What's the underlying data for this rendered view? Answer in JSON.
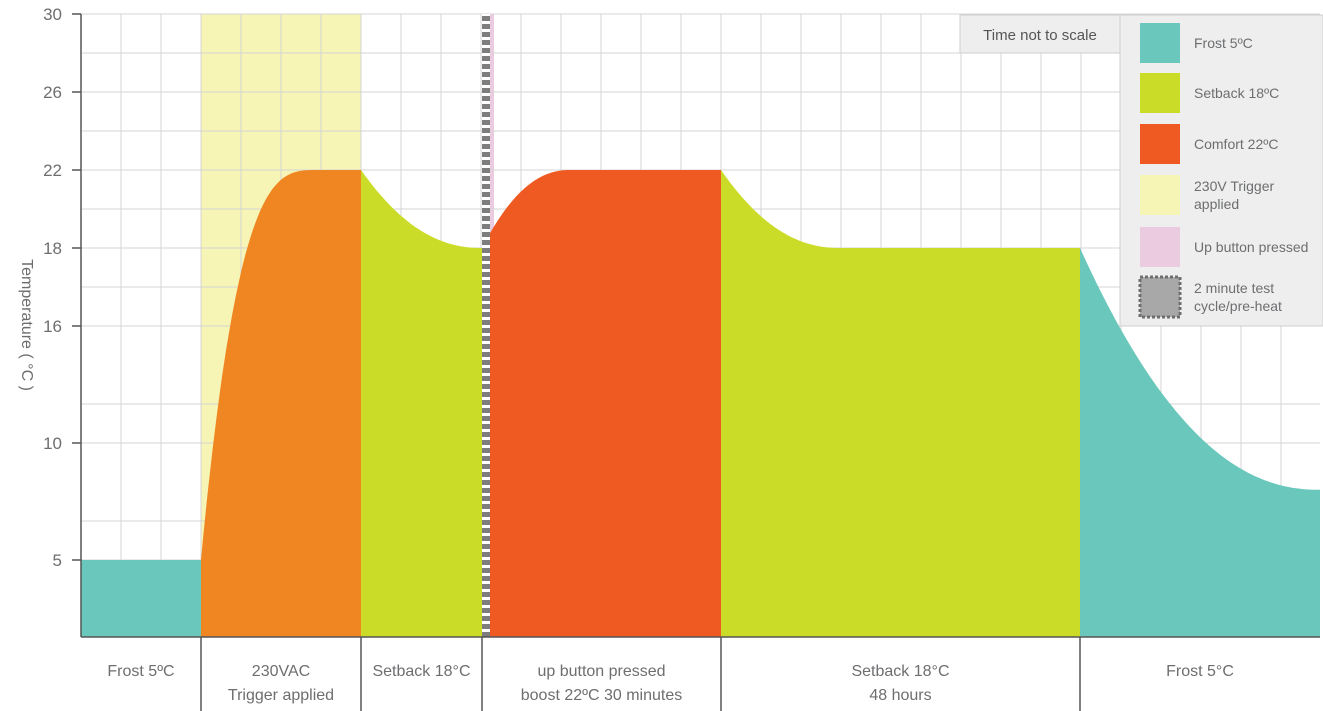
{
  "chart_data": {
    "type": "area",
    "ylabel": "Temperature ( °C )",
    "y_ticks": [
      "5",
      "10",
      "16",
      "18",
      "22",
      "26",
      "30"
    ],
    "note": "Time not to scale",
    "colors": {
      "frost": "#69c7bb",
      "setback": "#cadc28",
      "comfort": "#ee5a22",
      "trigger_heat": "#ef8622",
      "trigger_band": "#f6f5b6",
      "up_button_band": "#ebcbe0",
      "test_cycle": "#7d7d7d",
      "axis": "#555555",
      "grid": "#d4d4d4"
    },
    "phases": [
      {
        "label_lines": [
          "Frost 5ºC"
        ],
        "temperature_start": 5,
        "temperature_end": 5,
        "color_key": "frost"
      },
      {
        "label_lines": [
          "230VAC",
          "Trigger applied"
        ],
        "temperature_start": 5,
        "temperature_end": 22,
        "color_key": "trigger_heat"
      },
      {
        "label_lines": [
          "Setback 18°C"
        ],
        "temperature_start": 22,
        "temperature_end": 18,
        "color_key": "setback"
      },
      {
        "label_lines": [
          "up button pressed",
          "boost 22ºC 30 minutes"
        ],
        "temperature_start": 18,
        "temperature_end": 22,
        "color_key": "comfort"
      },
      {
        "label_lines": [
          "Setback 18°C",
          "48 hours"
        ],
        "temperature_start": 22,
        "temperature_end": 18,
        "color_key": "setback"
      },
      {
        "label_lines": [
          "Frost 5°C"
        ],
        "temperature_start": 18,
        "temperature_end": 8,
        "color_key": "frost"
      }
    ],
    "legend": [
      {
        "label_lines": [
          "Frost 5ºC"
        ],
        "color_key": "frost"
      },
      {
        "label_lines": [
          "Setback 18ºC"
        ],
        "color_key": "setback"
      },
      {
        "label_lines": [
          "Comfort 22ºC"
        ],
        "color_key": "comfort"
      },
      {
        "label_lines": [
          "230V Trigger",
          "applied"
        ],
        "color_key": "trigger_band"
      },
      {
        "label_lines": [
          "Up button pressed"
        ],
        "color_key": "up_button_band"
      },
      {
        "label_lines": [
          "2 minute test",
          "cycle/pre-heat"
        ],
        "color_key": "test_cycle"
      }
    ]
  }
}
